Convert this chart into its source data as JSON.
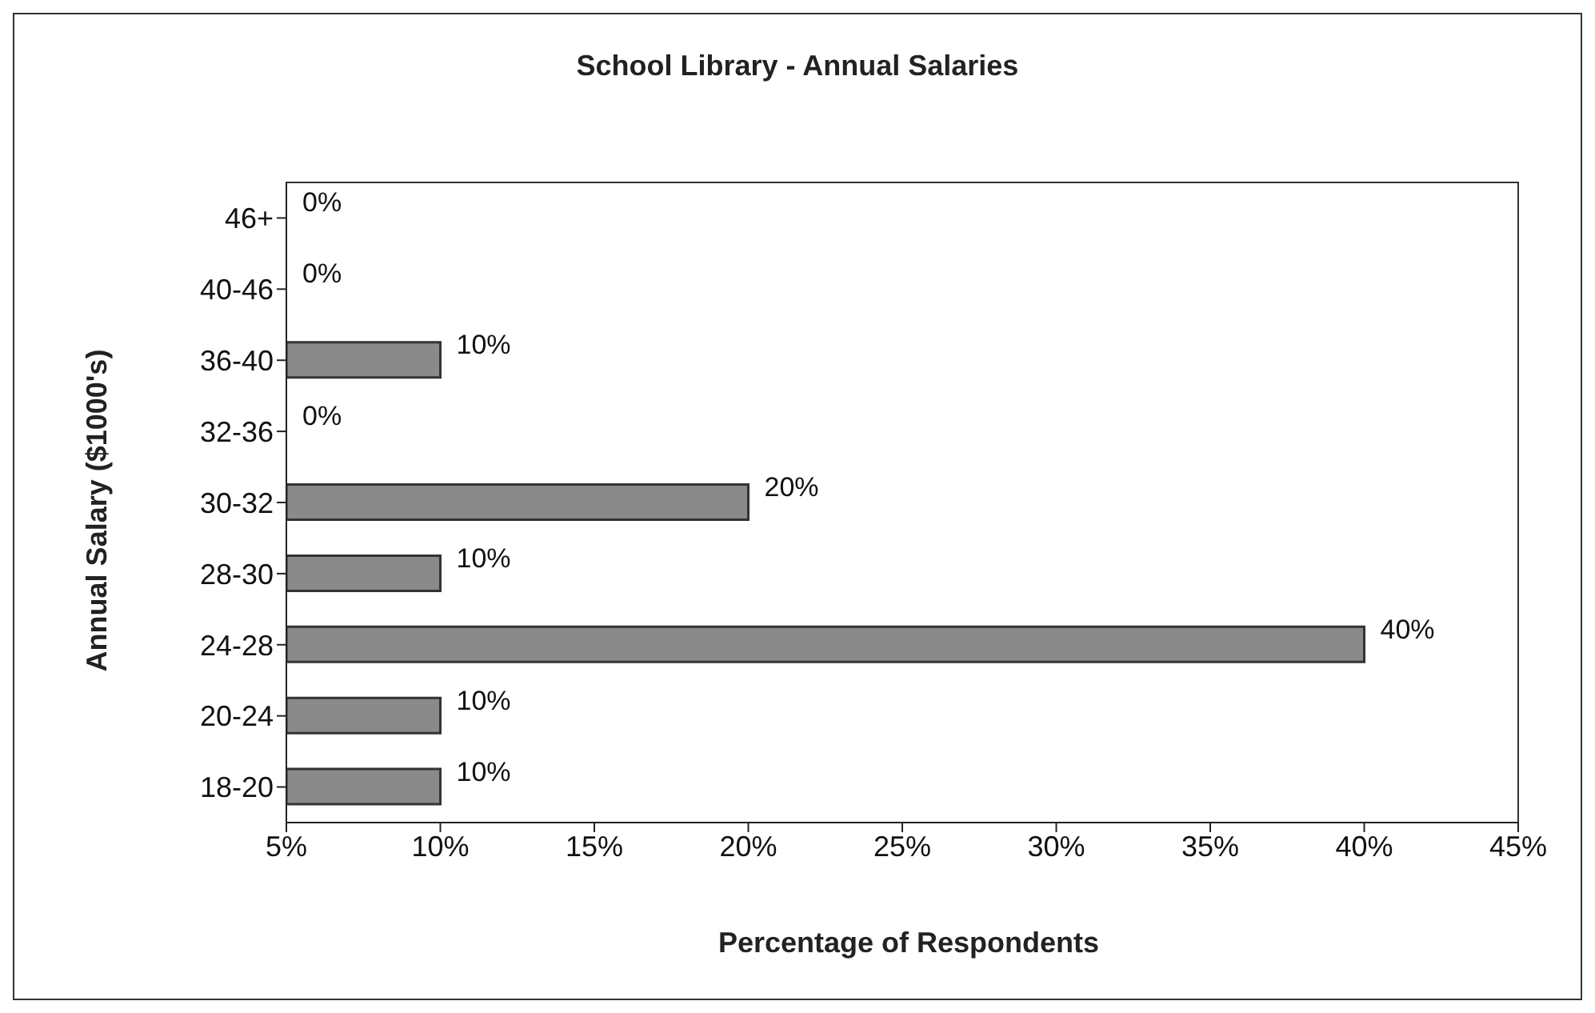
{
  "chart_data": {
    "type": "bar",
    "orientation": "horizontal",
    "title": "School Library - Annual Salaries",
    "xlabel": "Percentage of Respondents",
    "ylabel": "Annual Salary ($1000's)",
    "categories": [
      "46+",
      "40-46",
      "36-40",
      "32-36",
      "30-32",
      "28-30",
      "24-28",
      "20-24",
      "18-20"
    ],
    "values": [
      null,
      null,
      10,
      null,
      20,
      10,
      40,
      10,
      10
    ],
    "value_labels": [
      "0%",
      "0%",
      "10%",
      "0%",
      "20%",
      "10%",
      "40%",
      "10%",
      "10%"
    ],
    "color": "#8a8a8a",
    "xlim": [
      5,
      45
    ],
    "xticks": [
      {
        "value": 5,
        "label": "5%"
      },
      {
        "value": 10,
        "label": "10%"
      },
      {
        "value": 15,
        "label": "15%"
      },
      {
        "value": 20,
        "label": "20%"
      },
      {
        "value": 25,
        "label": "25%"
      },
      {
        "value": 30,
        "label": "30%"
      },
      {
        "value": 35,
        "label": "35%"
      },
      {
        "value": 40,
        "label": "40%"
      },
      {
        "value": 45,
        "label": "45%"
      }
    ],
    "grid": false,
    "legend": false
  }
}
